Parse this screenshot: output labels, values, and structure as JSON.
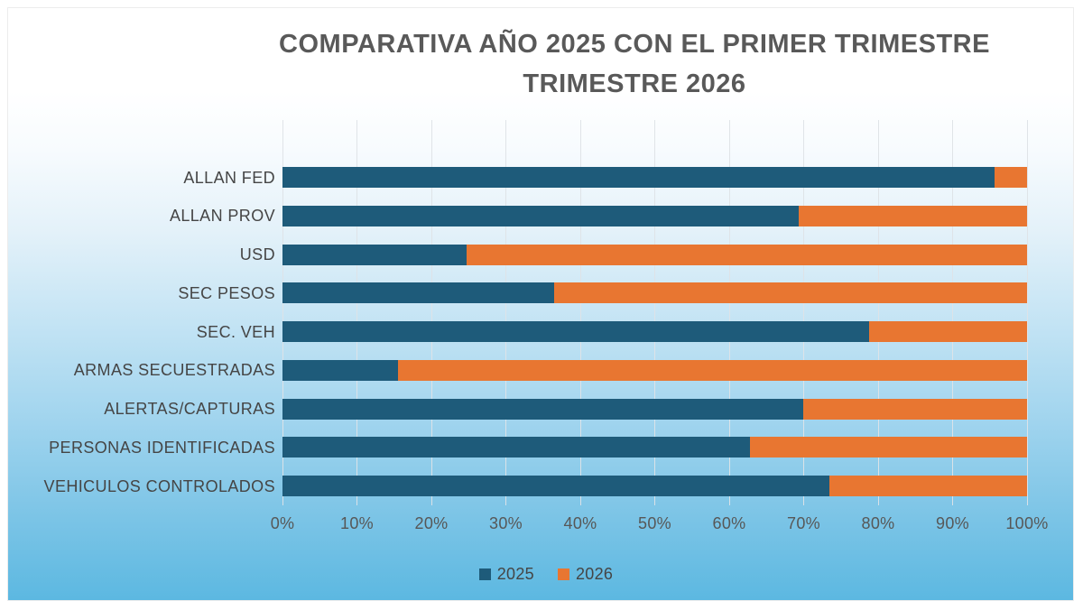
{
  "chart": {
    "title": "COMPARATIVA AÑO 2025 CON EL PRIMER TRIMESTRE\nTRIMESTRE 2026",
    "title_color": "#595959"
  },
  "chart_data": {
    "type": "bar",
    "orientation": "horizontal",
    "stacked": true,
    "stacked_total": 100,
    "title": "COMPARATIVA AÑO 2025 CON EL PRIMER TRIMESTRE TRIMESTRE 2026",
    "categories": [
      "ALLAN FED",
      "ALLAN PROV",
      "USD",
      "SEC PESOS",
      "SEC. VEH",
      "ARMAS SECUESTRADAS",
      "ALERTAS/CAPTURAS",
      "PERSONAS IDENTIFICADAS",
      "VEHICULOS CONTROLADOS"
    ],
    "series": [
      {
        "name": "2025",
        "color": "#1e5b7a",
        "values": [
          95.6,
          69.3,
          24.7,
          36.5,
          78.8,
          15.5,
          69.9,
          62.8,
          73.4
        ]
      },
      {
        "name": "2026",
        "color": "#e87631",
        "values": [
          4.4,
          30.7,
          75.3,
          63.5,
          21.2,
          84.5,
          30.1,
          37.2,
          26.6
        ]
      }
    ],
    "x_axis": {
      "min": 0,
      "max": 100,
      "unit": "%",
      "ticks": [
        "0%",
        "10%",
        "20%",
        "30%",
        "40%",
        "50%",
        "60%",
        "70%",
        "80%",
        "90%",
        "100%"
      ]
    },
    "legend": {
      "position": "bottom",
      "entries": [
        "2025",
        "2026"
      ]
    },
    "grid": true
  }
}
